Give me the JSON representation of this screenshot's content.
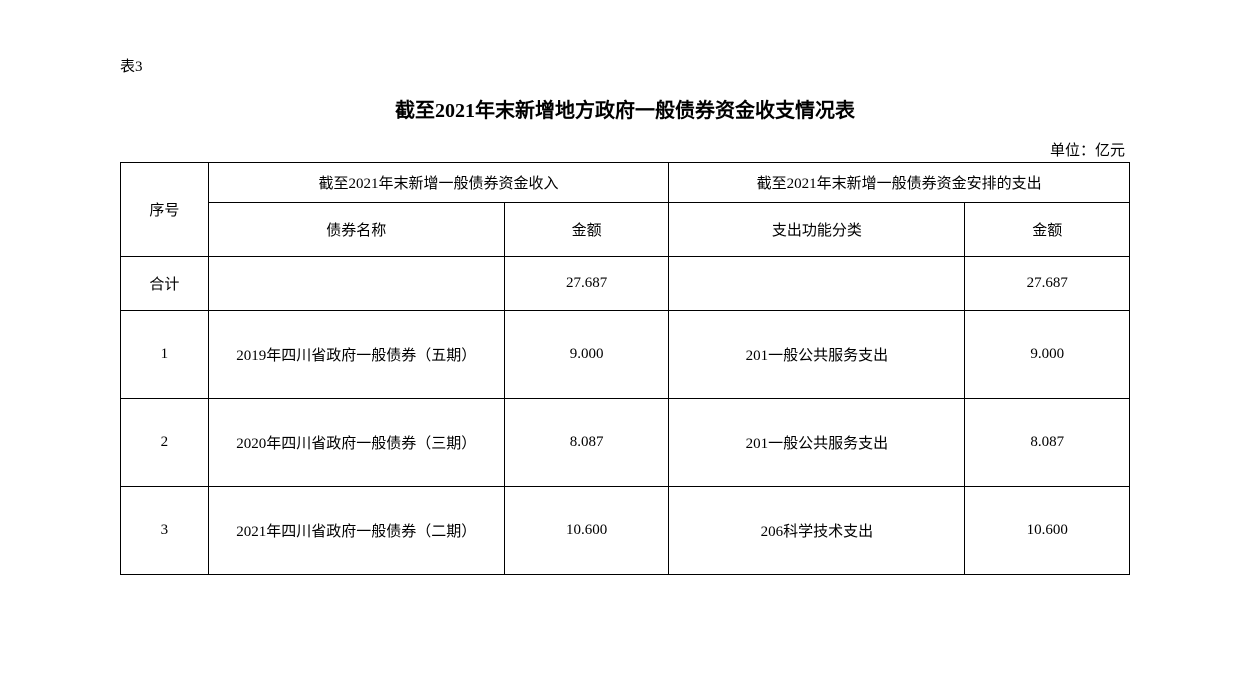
{
  "labels": {
    "table_label": "表3",
    "title": "截至2021年末新增地方政府一般债券资金收支情况表",
    "unit": "单位：亿元"
  },
  "header": {
    "seq": "序号",
    "income_group": "截至2021年末新增一般债券资金收入",
    "expense_group": "截至2021年末新增一般债券资金安排的支出",
    "bond_name": "债券名称",
    "amount": "金额",
    "expense_category": "支出功能分类",
    "amount2": "金额"
  },
  "total": {
    "label": "合计",
    "income_amount": "27.687",
    "expense_amount": "27.687"
  },
  "rows": [
    {
      "seq": "1",
      "bond_name": "2019年四川省政府一般债券（五期）",
      "income_amount": "9.000",
      "expense_category": "201一般公共服务支出",
      "expense_amount": "9.000"
    },
    {
      "seq": "2",
      "bond_name": "2020年四川省政府一般债券（三期）",
      "income_amount": "8.087",
      "expense_category": "201一般公共服务支出",
      "expense_amount": "8.087"
    },
    {
      "seq": "3",
      "bond_name": "2021年四川省政府一般债券（二期）",
      "income_amount": "10.600",
      "expense_category": "206科学技术支出",
      "expense_amount": "10.600"
    }
  ]
}
